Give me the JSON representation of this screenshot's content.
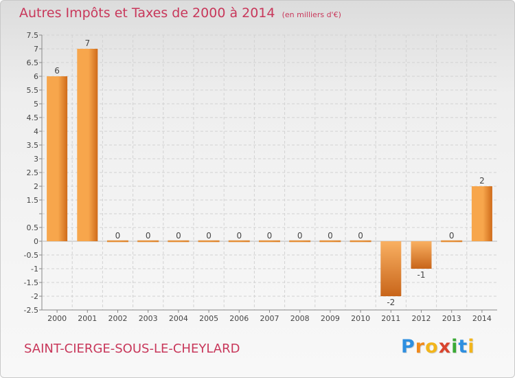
{
  "title": "Autres Impôts et Taxes de 2000 à 2014",
  "unit_note": "(en milliers d'€)",
  "place_name": "SAINT-CIERGE-SOUS-LE-CHEYLARD",
  "logo": {
    "text": "Proxiti",
    "letters": [
      "P",
      "r",
      "o",
      "x",
      "i",
      "t",
      "i"
    ]
  },
  "colors": {
    "title": "#c8375a",
    "bar_light": "#f7a64c",
    "bar_dark": "#cf6b1a",
    "grid": "#d2d2d2",
    "axis": "#888888"
  },
  "chart_data": {
    "type": "bar",
    "categories": [
      "2000",
      "2001",
      "2002",
      "2003",
      "2004",
      "2005",
      "2006",
      "2007",
      "2008",
      "2009",
      "2010",
      "2011",
      "2012",
      "2013",
      "2014"
    ],
    "values": [
      6,
      7,
      0,
      0,
      0,
      0,
      0,
      0,
      0,
      0,
      0,
      -2,
      -1,
      0,
      2
    ],
    "value_labels": [
      "6",
      "7",
      "0",
      "0",
      "0",
      "0",
      "0",
      "0",
      "0",
      "0",
      "0",
      "-2",
      "-1",
      "0",
      "2"
    ],
    "y_ticks": [
      -2.5,
      -2,
      -1.5,
      -1,
      -0.5,
      0,
      0.5,
      1,
      1.5,
      2,
      2.5,
      3,
      3.5,
      4,
      4.5,
      5,
      5.5,
      6,
      6.5,
      7,
      7.5
    ],
    "y_tick_labels": [
      "-2.5",
      "-2",
      "-1.5",
      "-1",
      "-0.5",
      "0",
      "0.5",
      "",
      "1.5",
      "2",
      "2.5",
      "3",
      "3.5",
      "4",
      "4.5",
      "5",
      "5.5",
      "6",
      "6.5",
      "7",
      "7.5"
    ],
    "ylim": [
      -2.5,
      7.5
    ],
    "grid": true,
    "legend": "none"
  }
}
